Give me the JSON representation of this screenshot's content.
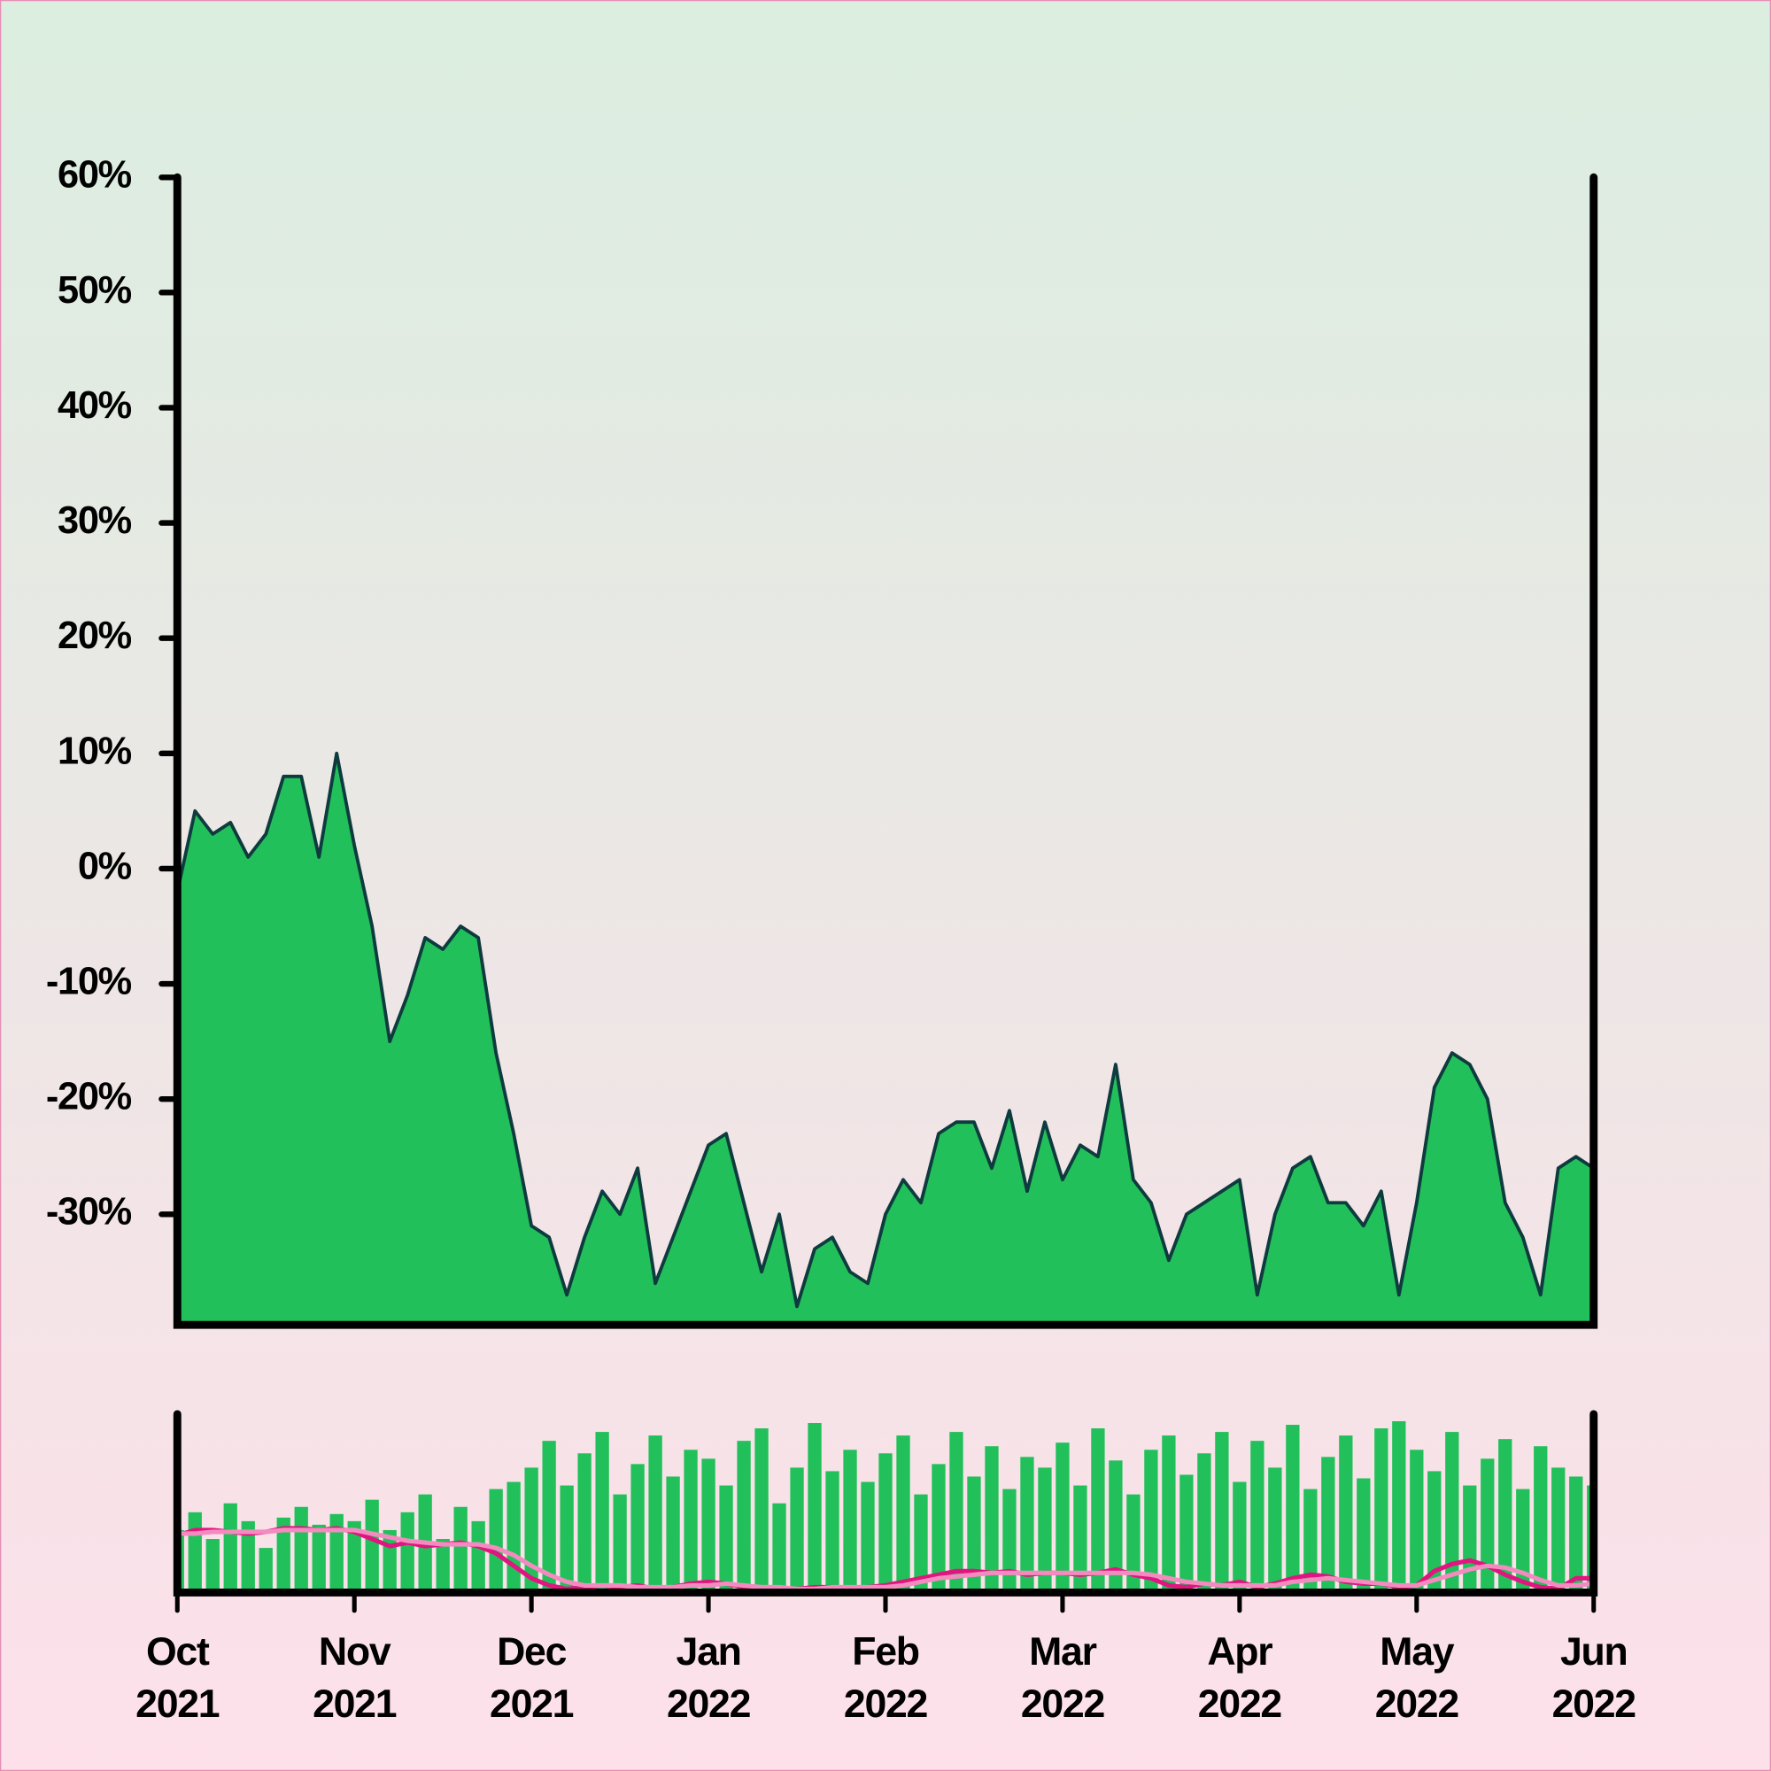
{
  "chart_data": [
    {
      "type": "area",
      "color": "#22c05a",
      "line_color": "#0d3b3e",
      "x": [
        0,
        0.1,
        0.2,
        0.3,
        0.4,
        0.5,
        0.6,
        0.7,
        0.8,
        0.9,
        1,
        1.1,
        1.2,
        1.3,
        1.4,
        1.5,
        1.6,
        1.7,
        1.8,
        1.9,
        2,
        2.1,
        2.2,
        2.3,
        2.4,
        2.5,
        2.6,
        2.7,
        2.8,
        2.9,
        3,
        3.1,
        3.2,
        3.3,
        3.4,
        3.5,
        3.6,
        3.7,
        3.8,
        3.9,
        4,
        4.1,
        4.2,
        4.3,
        4.4,
        4.5,
        4.6,
        4.7,
        4.8,
        4.9,
        5,
        5.1,
        5.2,
        5.3,
        5.4,
        5.5,
        5.6,
        5.7,
        5.8,
        5.9,
        6,
        6.1,
        6.2,
        6.3,
        6.4,
        6.5,
        6.6,
        6.7,
        6.8,
        6.9,
        7,
        7.1,
        7.2,
        7.3,
        7.4,
        7.5,
        7.6,
        7.7,
        7.8,
        7.9,
        8
      ],
      "values": [
        -2,
        5,
        3,
        4,
        1,
        3,
        8,
        8,
        1,
        10,
        2,
        -5,
        -15,
        -11,
        -6,
        -7,
        -5,
        -6,
        -16,
        -23,
        -31,
        -32,
        -37,
        -32,
        -28,
        -30,
        -26,
        -36,
        -32,
        -28,
        -24,
        -23,
        -29,
        -35,
        -30,
        -38,
        -33,
        -32,
        -35,
        -36,
        -30,
        -27,
        -29,
        -23,
        -22,
        -22,
        -26,
        -21,
        -28,
        -22,
        -27,
        -24,
        -25,
        -17,
        -27,
        -29,
        -34,
        -30,
        -29,
        -28,
        -27,
        -37,
        -30,
        -26,
        -25,
        -29,
        -29,
        -31,
        -28,
        -37,
        -29,
        -19,
        -16,
        -17,
        -20,
        -29,
        -32,
        -37,
        -26,
        -25,
        -26
      ],
      "xlim": [
        0,
        8
      ],
      "ylim": [
        -39.6,
        60
      ],
      "yticks": [
        {
          "value": 60,
          "label": "60%"
        },
        {
          "value": 50,
          "label": "50%"
        },
        {
          "value": 40,
          "label": "40%"
        },
        {
          "value": 30,
          "label": "30%"
        },
        {
          "value": 20,
          "label": "20%"
        },
        {
          "value": 10,
          "label": "10%"
        },
        {
          "value": 0,
          "label": "0%"
        },
        {
          "value": -10,
          "label": "-10%"
        },
        {
          "value": -20,
          "label": "-20%"
        },
        {
          "value": -30,
          "label": "-30%"
        }
      ]
    },
    {
      "type": "bar",
      "x": [
        0,
        0.1,
        0.2,
        0.3,
        0.4,
        0.5,
        0.6,
        0.7,
        0.8,
        0.9,
        1,
        1.1,
        1.2,
        1.3,
        1.4,
        1.5,
        1.6,
        1.7,
        1.8,
        1.9,
        2,
        2.1,
        2.2,
        2.3,
        2.4,
        2.5,
        2.6,
        2.7,
        2.8,
        2.9,
        3,
        3.1,
        3.2,
        3.3,
        3.4,
        3.5,
        3.6,
        3.7,
        3.8,
        3.9,
        4,
        4.1,
        4.2,
        4.3,
        4.4,
        4.5,
        4.6,
        4.7,
        4.8,
        4.9,
        5,
        5.1,
        5.2,
        5.3,
        5.4,
        5.5,
        5.6,
        5.7,
        5.8,
        5.9,
        6,
        6.1,
        6.2,
        6.3,
        6.4,
        6.5,
        6.6,
        6.7,
        6.8,
        6.9,
        7,
        7.1,
        7.2,
        7.3,
        7.4,
        7.5,
        7.6,
        7.7,
        7.8,
        7.9,
        8
      ],
      "series": [
        {
          "type": "bar",
          "color": "#22c05a",
          "values": [
            35,
            45,
            30,
            50,
            40,
            25,
            42,
            48,
            38,
            44,
            40,
            52,
            35,
            45,
            55,
            30,
            48,
            40,
            58,
            62,
            70,
            85,
            60,
            78,
            90,
            55,
            72,
            88,
            65,
            80,
            75,
            60,
            85,
            92,
            50,
            70,
            95,
            68,
            80,
            62,
            78,
            88,
            55,
            72,
            90,
            65,
            82,
            58,
            76,
            70,
            84,
            60,
            92,
            74,
            55,
            80,
            88,
            66,
            78,
            90,
            62,
            85,
            70,
            94,
            58,
            76,
            88,
            64,
            92,
            96,
            80,
            68,
            90,
            60,
            75,
            86,
            58,
            82,
            70,
            65,
            60
          ]
        },
        {
          "type": "line",
          "color": "#e0157f",
          "values": [
            32,
            35,
            35,
            34,
            33,
            34,
            36,
            36,
            35,
            36,
            34,
            30,
            26,
            28,
            26,
            27,
            28,
            26,
            22,
            15,
            8,
            4,
            2,
            3,
            4,
            3,
            4,
            2,
            3,
            5,
            6,
            5,
            3,
            2,
            2,
            2,
            3,
            3,
            2,
            3,
            4,
            6,
            8,
            10,
            12,
            12,
            11,
            12,
            10,
            11,
            11,
            10,
            11,
            13,
            10,
            8,
            4,
            3,
            5,
            4,
            6,
            3,
            5,
            8,
            10,
            9,
            6,
            5,
            5,
            3,
            4,
            12,
            16,
            18,
            15,
            10,
            6,
            3,
            2,
            8,
            8
          ]
        },
        {
          "type": "line",
          "color": "#f48bc0",
          "values": [
            33,
            33,
            34,
            34,
            34,
            34,
            35,
            35,
            35,
            35,
            35,
            33,
            31,
            29,
            28,
            27,
            27,
            27,
            25,
            21,
            15,
            10,
            6,
            4,
            4,
            4,
            3,
            3,
            3,
            4,
            4,
            5,
            4,
            3,
            3,
            2,
            2,
            3,
            3,
            3,
            3,
            4,
            6,
            8,
            9,
            10,
            11,
            11,
            11,
            11,
            11,
            11,
            11,
            11,
            11,
            10,
            8,
            6,
            5,
            4,
            4,
            4,
            4,
            6,
            7,
            8,
            7,
            6,
            5,
            4,
            4,
            7,
            10,
            13,
            15,
            14,
            11,
            7,
            4,
            4,
            5
          ]
        }
      ],
      "xlim": [
        0,
        8
      ],
      "ylim": [
        0,
        100
      ],
      "xticks": [
        {
          "value": 0,
          "label": "Oct 2021"
        },
        {
          "value": 1,
          "label": "Nov 2021"
        },
        {
          "value": 2,
          "label": "Dec 2021"
        },
        {
          "value": 3,
          "label": "Jan 2022"
        },
        {
          "value": 4,
          "label": "Feb 2022"
        },
        {
          "value": 5,
          "label": "Mar 2022"
        },
        {
          "value": 6,
          "label": "Apr 2022"
        },
        {
          "value": 7,
          "label": "May 2022"
        },
        {
          "value": 8,
          "label": "Jun 2022"
        }
      ]
    }
  ]
}
